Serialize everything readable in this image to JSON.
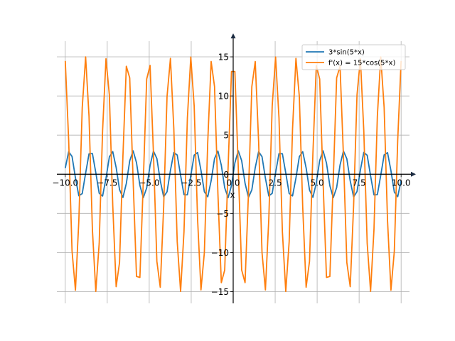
{
  "chart_data": {
    "type": "line",
    "title": "",
    "xlabel": "x",
    "ylabel": "",
    "xlim": [
      -10.5,
      10.5
    ],
    "ylim": [
      -16.5,
      17
    ],
    "grid": true,
    "legend_position": "top-right",
    "x_ticks": [
      -10.0,
      -7.5,
      -5.0,
      -2.5,
      0.0,
      2.5,
      5.0,
      7.5,
      10.0
    ],
    "x_tick_labels": [
      "−10.0",
      "−7.5",
      "−5.0",
      "−2.5",
      "0.0",
      "2.5",
      "5.0",
      "7.5",
      "10.0"
    ],
    "y_ticks": [
      -15,
      -10,
      -5,
      0,
      5,
      10,
      15
    ],
    "y_tick_labels": [
      "−15",
      "−10",
      "−5",
      "0",
      "5",
      "10",
      "15"
    ],
    "sample_range": [
      -10,
      10
    ],
    "sample_count": 100,
    "series": [
      {
        "name": "3*sin(5*x)",
        "color": "#1f77b4",
        "amplitude": 3,
        "frequency": 5,
        "function": "sin"
      },
      {
        "name": "f'(x) = 15*cos(5*x)",
        "color": "#ff7f0e",
        "amplitude": 15,
        "frequency": 5,
        "function": "cos"
      }
    ]
  }
}
